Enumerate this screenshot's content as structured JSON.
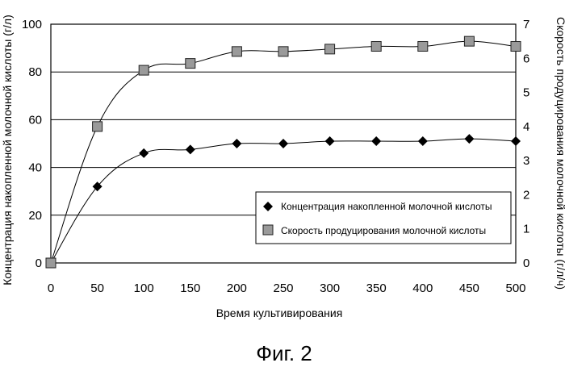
{
  "chart_data": {
    "type": "line",
    "x": [
      0,
      50,
      100,
      150,
      200,
      250,
      300,
      350,
      400,
      450,
      500
    ],
    "xlabel": "Время культивирования",
    "ylabel_left": "Концентрация накопленной молочной кислоты (г/л)",
    "ylabel_right": "Скорость продуцирования молочной кислоты (г/л/ч)",
    "xlim": [
      0,
      500
    ],
    "ylim_left": [
      0,
      100
    ],
    "ylim_right": [
      0,
      7
    ],
    "xticks": [
      "0",
      "50",
      "100",
      "150",
      "200",
      "250",
      "300",
      "350",
      "400",
      "450",
      "500"
    ],
    "yticks_left": [
      "0",
      "20",
      "40",
      "60",
      "80",
      "100"
    ],
    "yticks_right": [
      "0",
      "1",
      "2",
      "3",
      "4",
      "5",
      "6",
      "7"
    ],
    "grid": "horizontal",
    "legend_position": "right",
    "series": [
      {
        "name": "Концентрация накопленной молочной кислоты",
        "axis": "left",
        "marker": "diamond",
        "values": [
          0,
          32,
          46,
          47.5,
          50,
          50,
          51,
          51,
          51,
          52,
          51
        ]
      },
      {
        "name": "Скорость продуцирования молочной кислоты",
        "axis": "right",
        "marker": "square",
        "values": [
          0,
          4.0,
          5.65,
          5.85,
          6.2,
          6.2,
          6.27,
          6.35,
          6.35,
          6.5,
          6.35
        ]
      }
    ],
    "caption": "Фиг. 2"
  }
}
